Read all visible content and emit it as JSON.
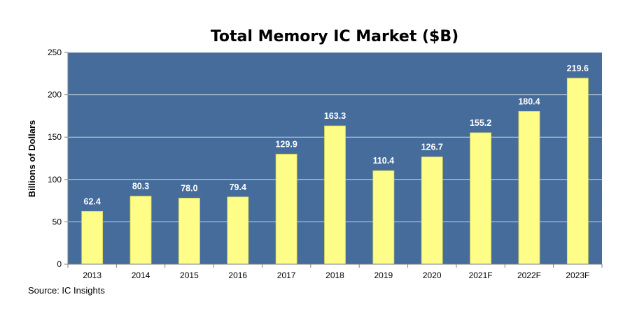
{
  "chart_data": {
    "type": "bar",
    "title": "Total Memory IC Market ($B)",
    "xlabel": "",
    "ylabel": "Billions of Dollars",
    "categories": [
      "2013",
      "2014",
      "2015",
      "2016",
      "2017",
      "2018",
      "2019",
      "2020",
      "2021F",
      "2022F",
      "2023F"
    ],
    "values": [
      62.4,
      80.3,
      78.0,
      79.4,
      129.9,
      163.3,
      110.4,
      126.7,
      155.2,
      180.4,
      219.6
    ],
    "value_labels": [
      "62.4",
      "80.3",
      "78.0",
      "79.4",
      "129.9",
      "163.3",
      "110.4",
      "126.7",
      "155.2",
      "180.4",
      "219.6"
    ],
    "ylim": [
      0,
      250
    ],
    "yticks": [
      "0",
      "50",
      "100",
      "150",
      "200",
      "250"
    ],
    "grid": true,
    "legend": "none",
    "source": "Source:  IC Insights"
  },
  "colors": {
    "plot_background": "#456c9b",
    "bar_fill": "#fdfd87",
    "bar_stroke": "#d9d35a",
    "value_label": "#ffffff",
    "gridline": "#c8d3e2",
    "axis": "#7f7f7f"
  }
}
